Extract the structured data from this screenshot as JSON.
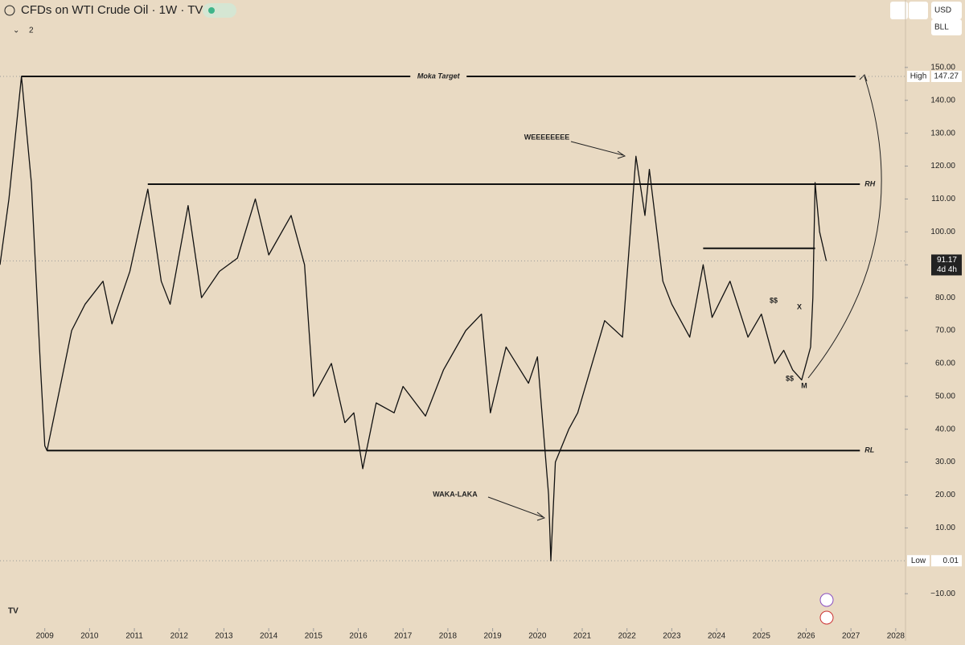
{
  "chart_data": {
    "type": "line",
    "title": "CFDs on WTI Crude Oil · 1W · TVC",
    "indicator_count": "2",
    "currency": "USD",
    "unit": "BLL",
    "xlim": [
      2008.0,
      2028.2
    ],
    "ylim": [
      -19,
      170.5
    ],
    "xticks": [
      2009,
      2010,
      2011,
      2012,
      2013,
      2014,
      2015,
      2016,
      2017,
      2018,
      2019,
      2020,
      2021,
      2022,
      2023,
      2024,
      2025,
      2026,
      2027,
      2028
    ],
    "yticks": [
      {
        "value": -10,
        "label": "−10.00"
      },
      {
        "value": 10,
        "label": "10.00"
      },
      {
        "value": 20,
        "label": "20.00"
      },
      {
        "value": 30,
        "label": "30.00"
      },
      {
        "value": 40,
        "label": "40.00"
      },
      {
        "value": 50,
        "label": "50.00"
      },
      {
        "value": 60,
        "label": "60.00"
      },
      {
        "value": 70,
        "label": "70.00"
      },
      {
        "value": 80,
        "label": "80.00"
      },
      {
        "value": 90,
        "label": "90.00"
      },
      {
        "value": 100,
        "label": "100.00"
      },
      {
        "value": 110,
        "label": "110.00"
      },
      {
        "value": 120,
        "label": "120.00"
      },
      {
        "value": 130,
        "label": "130.00"
      },
      {
        "value": 140,
        "label": "140.00"
      },
      {
        "value": 150,
        "label": "150.00"
      }
    ],
    "series": [
      {
        "name": "WTI",
        "color": "#111111",
        "x": [
          2008.0,
          2008.2,
          2008.48,
          2008.7,
          2008.9,
          2009.0,
          2009.05,
          2009.3,
          2009.6,
          2009.9,
          2010.3,
          2010.5,
          2010.9,
          2011.3,
          2011.6,
          2011.8,
          2012.2,
          2012.5,
          2012.9,
          2013.3,
          2013.7,
          2014.0,
          2014.5,
          2014.8,
          2015.0,
          2015.4,
          2015.7,
          2015.9,
          2016.1,
          2016.4,
          2016.8,
          2017.0,
          2017.5,
          2017.9,
          2018.4,
          2018.75,
          2018.95,
          2019.3,
          2019.8,
          2020.0,
          2020.25,
          2020.3,
          2020.4,
          2020.7,
          2020.9,
          2021.5,
          2021.9,
          2022.2,
          2022.4,
          2022.5,
          2022.8,
          2023.0,
          2023.4,
          2023.7,
          2023.9,
          2024.3,
          2024.7,
          2025.0,
          2025.3,
          2025.5,
          2025.7,
          2025.9,
          2026.0,
          2026.1,
          2026.15,
          2026.2,
          2026.3,
          2026.45
        ],
        "values": [
          90,
          110,
          147.27,
          115,
          60,
          35,
          33.5,
          50,
          70,
          78,
          85,
          72,
          88,
          113,
          85,
          78,
          108,
          80,
          88,
          92,
          110,
          93,
          105,
          90,
          50,
          60,
          42,
          45,
          28,
          48,
          45,
          53,
          44,
          58,
          70,
          75,
          45,
          65,
          54,
          62,
          20,
          0.01,
          30,
          40,
          45,
          73,
          68,
          123,
          105,
          119,
          85,
          78,
          68,
          90,
          74,
          85,
          68,
          75,
          60,
          64,
          58,
          55,
          60,
          65,
          80,
          115,
          100,
          91.17
        ]
      }
    ],
    "levels": [
      {
        "name": "Moka Target",
        "value": 147.27,
        "x": [
          2008.48,
          2027.1
        ]
      },
      {
        "name": "RH",
        "value": 114.5,
        "x": [
          2011.3,
          2027.2
        ]
      },
      {
        "name": "RL",
        "value": 33.5,
        "x": [
          2009.05,
          2027.2
        ]
      },
      {
        "name": "",
        "value": 95,
        "x": [
          2023.7,
          2026.2
        ]
      }
    ],
    "annotations": [
      "WEEEEEEEE",
      "WAKA-LAKA",
      "X",
      "$$",
      "$$",
      "M"
    ],
    "high": {
      "label": "High",
      "value": 147.27
    },
    "low": {
      "label": "Low",
      "value": 0.01
    },
    "last": {
      "value": 91.17,
      "countdown": "4d 4h"
    }
  }
}
